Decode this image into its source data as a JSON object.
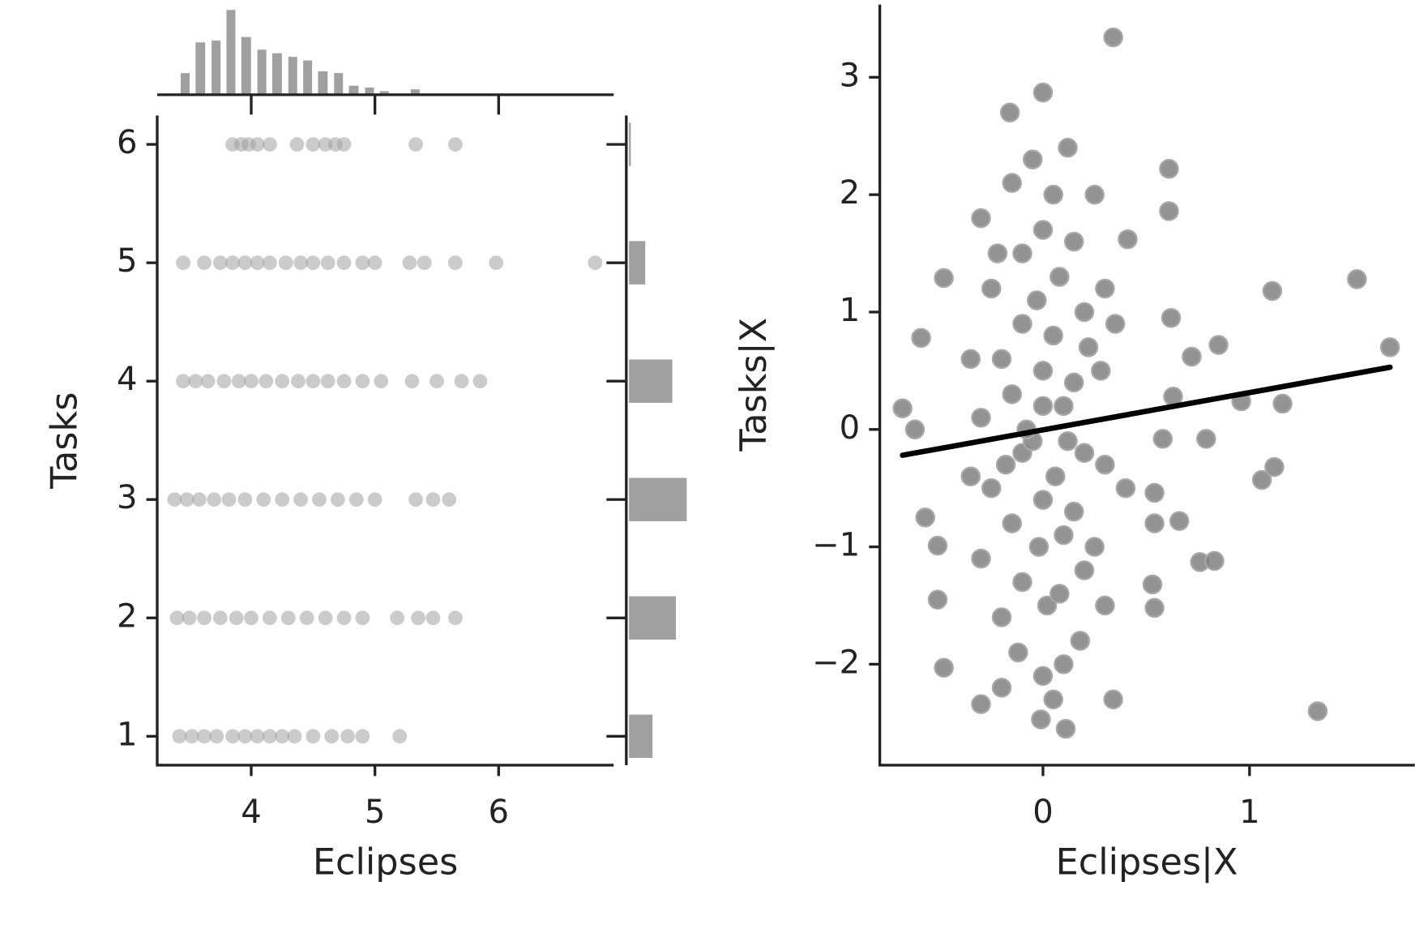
{
  "chart_data": [
    {
      "type": "scatter",
      "xlabel": "Eclipses",
      "ylabel": "Tasks",
      "color": "#a0a0a0",
      "xlim": [
        3.24,
        6.93
      ],
      "ylim": [
        0.756,
        6.244
      ],
      "xticks": [
        4,
        5,
        6
      ],
      "yticks": [
        1,
        2,
        3,
        4,
        5,
        6
      ],
      "x": [
        3.85,
        3.92,
        3.98,
        4.05,
        4.15,
        4.37,
        4.5,
        4.6,
        4.68,
        4.75,
        5.33,
        5.65,
        3.45,
        3.62,
        3.75,
        3.85,
        3.95,
        4.05,
        4.15,
        4.28,
        4.4,
        4.5,
        4.62,
        4.75,
        4.9,
        5.0,
        5.28,
        5.4,
        5.65,
        5.98,
        6.78,
        3.45,
        3.55,
        3.65,
        3.78,
        3.9,
        4.0,
        4.12,
        4.25,
        4.38,
        4.5,
        4.62,
        4.75,
        4.9,
        5.05,
        5.3,
        5.5,
        5.7,
        5.85,
        3.38,
        3.48,
        3.58,
        3.7,
        3.82,
        3.95,
        4.1,
        4.25,
        4.4,
        4.55,
        4.7,
        4.85,
        5.0,
        5.33,
        5.47,
        5.6,
        3.4,
        3.5,
        3.62,
        3.75,
        3.88,
        4.0,
        4.15,
        4.3,
        4.45,
        4.6,
        4.75,
        4.9,
        5.18,
        5.35,
        5.47,
        5.65,
        3.42,
        3.52,
        3.62,
        3.72,
        3.85,
        3.95,
        4.05,
        4.15,
        4.25,
        4.35,
        4.5,
        4.65,
        4.78,
        4.9,
        5.2
      ],
      "values": [
        6,
        6,
        6,
        6,
        6,
        6,
        6,
        6,
        6,
        6,
        6,
        6,
        5,
        5,
        5,
        5,
        5,
        5,
        5,
        5,
        5,
        5,
        5,
        5,
        5,
        5,
        5,
        5,
        5,
        5,
        5,
        4,
        4,
        4,
        4,
        4,
        4,
        4,
        4,
        4,
        4,
        4,
        4,
        4,
        4,
        4,
        4,
        4,
        4,
        3,
        3,
        3,
        3,
        3,
        3,
        3,
        3,
        3,
        3,
        3,
        3,
        3,
        3,
        3,
        3,
        2,
        2,
        2,
        2,
        2,
        2,
        2,
        2,
        2,
        2,
        2,
        2,
        2,
        2,
        2,
        2,
        1,
        1,
        1,
        1,
        1,
        1,
        1,
        1,
        1,
        1,
        1,
        1,
        1,
        1,
        1
      ]
    },
    {
      "type": "histogram",
      "color": "#a0a0a0",
      "xlim": [
        3.24,
        6.93
      ],
      "ylim": [
        0,
        50
      ],
      "bins": [
        3.43,
        3.55,
        3.68,
        3.8,
        3.92,
        4.05,
        4.17,
        4.3,
        4.42,
        4.54,
        4.67,
        4.79,
        4.92,
        5.04,
        5.16,
        5.29,
        5.41
      ],
      "values": [
        12,
        29,
        30,
        47,
        32,
        25,
        23,
        21,
        19,
        13,
        12,
        5,
        4,
        2,
        0,
        3
      ]
    },
    {
      "type": "bar",
      "orientation": "horizontal",
      "color": "#a0a0a0",
      "xlim": [
        0,
        35
      ],
      "categories": [
        1,
        2,
        3,
        4,
        5,
        6
      ],
      "values": [
        13,
        26,
        32,
        24,
        9,
        1
      ]
    },
    {
      "type": "scatter",
      "xlabel": "Eclipses|X",
      "ylabel": "Tasks|X",
      "color": "#808080",
      "line_color": "#000000",
      "xlim": [
        -0.79,
        1.8
      ],
      "ylim": [
        -2.86,
        3.62
      ],
      "xticks": [
        0,
        1
      ],
      "yticks": [
        {
          "value": -2,
          "label": "−2"
        },
        {
          "value": -1,
          "label": "−1"
        },
        0,
        1,
        2,
        3
      ],
      "x": [
        -0.68,
        -0.62,
        -0.59,
        -0.48,
        -0.57,
        -0.51,
        -0.51,
        -0.48,
        -0.3,
        -0.16,
        0,
        0.34,
        -0.01,
        0.11,
        0.34,
        0.61,
        0.61,
        0.41,
        1.11,
        1.52,
        1.68,
        0.85,
        0.96,
        1.16,
        1.06,
        1.12,
        0.79,
        0.58,
        0.54,
        0.54,
        0.66,
        0.76,
        0.83,
        0.53,
        0.54,
        1.33,
        0.72,
        0.63,
        0.62,
        -0.3,
        -0.25,
        -0.2,
        -0.3,
        -0.25,
        -0.3,
        -0.2,
        -0.15,
        -0.1,
        -0.1,
        -0.15,
        -0.1,
        -0.15,
        -0.1,
        -0.12,
        -0.05,
        0,
        -0.03,
        0,
        -0.05,
        0,
        -0.02,
        0.02,
        0,
        0.05,
        0.08,
        0.05,
        0.1,
        0.06,
        0.1,
        0.08,
        0.1,
        0.12,
        0.15,
        0.2,
        0.15,
        0.2,
        0.15,
        0.2,
        0.18,
        0.25,
        0.3,
        0.28,
        0.3,
        0.25,
        0.3,
        -0.35,
        -0.35,
        -0.2,
        0.05,
        -0.08,
        0.0,
        0.12,
        -0.18,
        0.22,
        -0.22,
        0.35,
        0.4
      ],
      "values": [
        0.18,
        0,
        0.78,
        1.29,
        -0.75,
        -0.99,
        -1.45,
        -2.03,
        -2.34,
        2.7,
        2.87,
        3.34,
        -2.47,
        -2.55,
        -2.3,
        2.22,
        1.86,
        1.62,
        1.18,
        1.28,
        0.7,
        0.72,
        0.24,
        0.22,
        -0.43,
        -0.32,
        -0.08,
        -0.08,
        -0.54,
        -0.8,
        -0.78,
        -1.13,
        -1.12,
        -1.32,
        -1.52,
        -2.4,
        0.62,
        0.28,
        0.95,
        1.8,
        1.2,
        0.6,
        0.1,
        -0.5,
        -1.1,
        -1.6,
        2.1,
        1.5,
        0.9,
        0.3,
        -0.2,
        -0.8,
        -1.3,
        -1.9,
        2.3,
        1.7,
        1.1,
        0.5,
        -0.1,
        -0.6,
        -1.0,
        -1.5,
        -2.1,
        2.0,
        1.3,
        0.8,
        0.2,
        -0.4,
        -0.9,
        -1.4,
        -2.0,
        2.4,
        1.6,
        1.0,
        0.4,
        -0.2,
        -0.7,
        -1.2,
        -1.8,
        2.0,
        1.2,
        0.5,
        -0.3,
        -1.0,
        -1.5,
        0.6,
        -0.4,
        -2.2,
        -2.3,
        0.0,
        0.2,
        -0.1,
        -0.3,
        0.7,
        1.5,
        0.9,
        -0.5
      ],
      "fit": {
        "x": [
          -0.68,
          1.68
        ],
        "values": [
          -0.22,
          0.53
        ]
      }
    }
  ]
}
